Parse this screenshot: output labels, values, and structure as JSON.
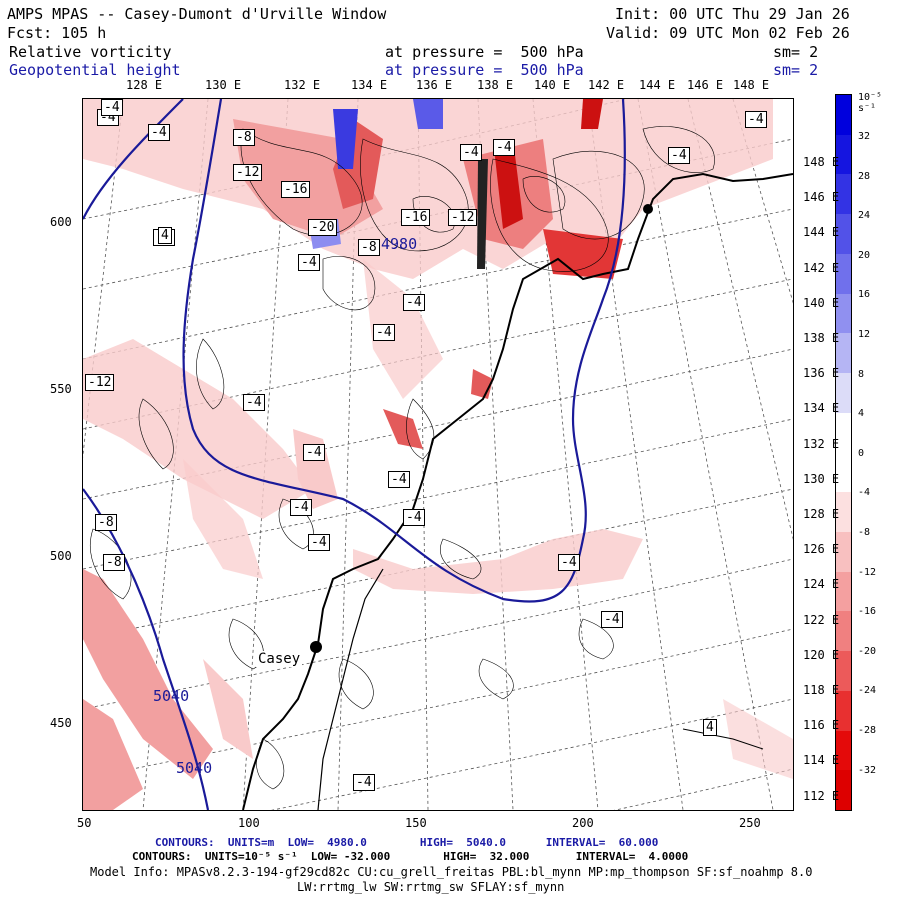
{
  "header": {
    "title": "AMPS MPAS -- Casey-Dumont d'Urville Window",
    "init": "Init: 00 UTC Thu 29 Jan 26",
    "fcst": "Fcst: 105 h",
    "valid": "Valid: 09 UTC Mon 02 Feb 26",
    "field1": {
      "name": "Relative vorticity",
      "level": "at pressure =  500 hPa",
      "sm": "sm= 2"
    },
    "field2": {
      "name": "Geopotential height",
      "level": "at pressure =  500 hPa",
      "sm": "sm= 2"
    }
  },
  "map": {
    "lon_labels_top": [
      "128 E",
      "130 E",
      "132 E",
      "134 E",
      "136 E",
      "138 E",
      "140 E",
      "142 E",
      "144 E",
      "146 E",
      "148 E"
    ],
    "lat_labels_right": [
      "148 E",
      "146 E",
      "144 E",
      "142 E",
      "140 E",
      "138 E",
      "136 E",
      "134 E",
      "132 E",
      "130 E",
      "128 E",
      "126 E",
      "124 E",
      "122 E",
      "120 E",
      "118 E",
      "116 E",
      "114 E",
      "112 E"
    ],
    "y_axis_labels": [
      "600",
      "550",
      "500",
      "450"
    ],
    "x_axis_labels": [
      "50",
      "100",
      "150",
      "200",
      "250"
    ],
    "station": "Casey",
    "height_contours": [
      {
        "label": "4980"
      },
      {
        "label": "5040"
      },
      {
        "label": "5040"
      }
    ],
    "vorticity_labels": [
      "-4",
      "-4",
      "-8",
      "-12",
      "-16",
      "-20",
      "-16",
      "-12",
      "-8",
      "-4",
      "-4",
      "-4",
      "-4",
      "-4",
      "-4",
      "-4",
      "-4",
      "-4",
      "-4",
      "-4",
      "-4",
      "-4",
      "-4",
      "-4",
      "-8",
      "-8",
      "-12",
      "-4",
      "-4",
      "4",
      "4",
      "-4"
    ],
    "colors": {
      "geopotential": "#1a1a99",
      "positive": "#2e2ef0",
      "negative": "#ee1111"
    }
  },
  "colorbar": {
    "unit_label": "10⁻⁵ s⁻¹",
    "ticks": [
      "32",
      "28",
      "24",
      "20",
      "16",
      "12",
      "8",
      "4",
      "0",
      "-4",
      "-8",
      "-12",
      "-16",
      "-20",
      "-24",
      "-28",
      "-32"
    ]
  },
  "footer": {
    "line1": "CONTOURS:  UNITS=m  LOW=  4980.0        HIGH=  5040.0      INTERVAL=  60.000",
    "line2": "CONTOURS:  UNITS=10⁻⁵ s⁻¹  LOW= -32.000        HIGH=  32.000       INTERVAL=  4.0000",
    "line3": "Model Info: MPASv8.2.3-194-gf29cd82c CU:cu_grell_freitas PBL:bl_mynn MP:mp_thompson SF:sf_noahmp 8.0",
    "line4": "LW:rrtmg_lw SW:rrtmg_sw SFLAY:sf_mynn"
  }
}
